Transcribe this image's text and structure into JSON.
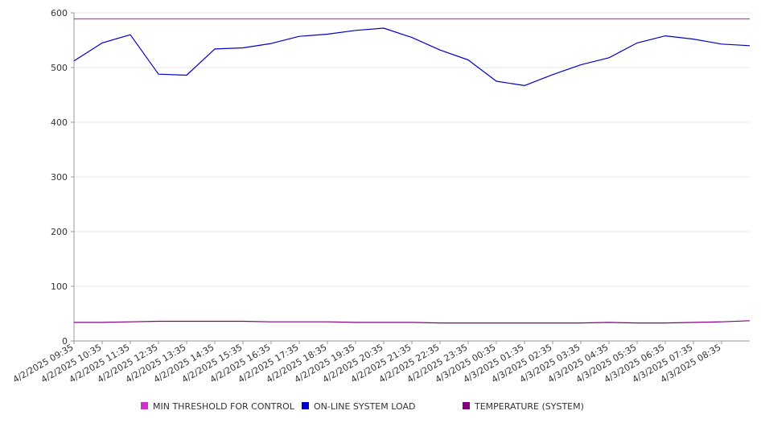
{
  "chart_data": {
    "type": "line",
    "title": "",
    "xlabel": "",
    "ylabel": "",
    "ylim": [
      0,
      600
    ],
    "y_ticks": [
      0,
      100,
      200,
      300,
      400,
      500,
      600
    ],
    "x_tick_labels": [
      "4/2/2025 09:35",
      "4/2/2025 10:35",
      "4/2/2025 11:35",
      "4/2/2025 12:35",
      "4/2/2025 13:35",
      "4/2/2025 14:35",
      "4/2/2025 15:35",
      "4/2/2025 16:35",
      "4/2/2025 17:35",
      "4/2/2025 18:35",
      "4/2/2025 19:35",
      "4/2/2025 20:35",
      "4/2/2025 21:35",
      "4/2/2025 22:35",
      "4/2/2025 23:35",
      "4/3/2025 00:35",
      "4/3/2025 01:35",
      "4/3/2025 02:35",
      "4/3/2025 03:35",
      "4/3/2025 04:35",
      "4/3/2025 05:35",
      "4/3/2025 06:35",
      "4/3/2025 07:35",
      "4/3/2025 08:35"
    ],
    "x_start": "4/2/2025 09:35",
    "x_end": "4/3/2025 09:35",
    "grid": "horizontal",
    "legend_position": "bottom",
    "series": [
      {
        "name": "MIN THRESHOLD FOR CONTROL",
        "color": "#cc33cc",
        "values": [
          589,
          589,
          589,
          589,
          589,
          589,
          589,
          589,
          589,
          589,
          589,
          589,
          589,
          589,
          589,
          589,
          589,
          589,
          589,
          589,
          589,
          589,
          589,
          589,
          589
        ]
      },
      {
        "name": "ON-LINE SYSTEM LOAD",
        "color": "#0000cc",
        "values": [
          512,
          545,
          560,
          488,
          486,
          534,
          536,
          544,
          557,
          561,
          568,
          572,
          555,
          532,
          514,
          475,
          467,
          487,
          505,
          518,
          545,
          558,
          552,
          543,
          540
        ]
      },
      {
        "name": "TEMPERATURE (SYSTEM)",
        "color": "#800080",
        "values": [
          34,
          34,
          35,
          36,
          36,
          36,
          36,
          35,
          35,
          35,
          34,
          34,
          34,
          33,
          33,
          33,
          33,
          33,
          33,
          34,
          33,
          33,
          34,
          35,
          37
        ]
      }
    ]
  }
}
